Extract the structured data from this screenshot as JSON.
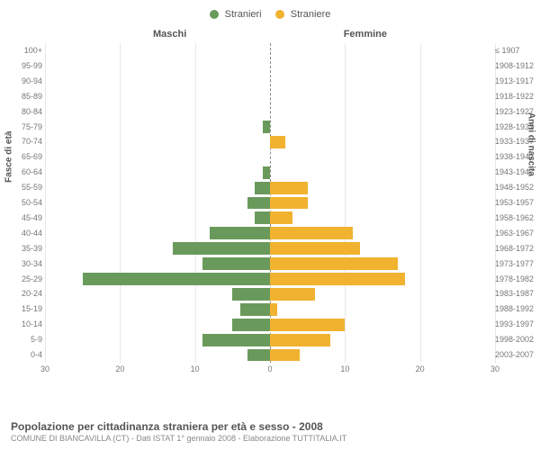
{
  "legend": {
    "male": {
      "label": "Stranieri",
      "color": "#6a9a5b"
    },
    "female": {
      "label": "Straniere",
      "color": "#f0b22f"
    }
  },
  "columns": {
    "left": "Maschi",
    "right": "Femmine"
  },
  "axes": {
    "left_title": "Fasce di età",
    "right_title": "Anni di nascita",
    "x_max": 30,
    "x_ticks_left": [
      30,
      20,
      10,
      0
    ],
    "x_ticks_right": [
      0,
      10,
      20,
      30
    ],
    "grid_positions": [
      -30,
      -20,
      -10,
      10,
      20,
      30
    ],
    "grid_color": "#e8e8e8",
    "center_color": "#888"
  },
  "colors": {
    "male_bar": "#6a9a5b",
    "female_bar": "#f0b22f",
    "background": "#ffffff",
    "text": "#555555",
    "muted_text": "#888888"
  },
  "rows": [
    {
      "age": "100+",
      "birth": "≤ 1907",
      "m": 0,
      "f": 0
    },
    {
      "age": "95-99",
      "birth": "1908-1912",
      "m": 0,
      "f": 0
    },
    {
      "age": "90-94",
      "birth": "1913-1917",
      "m": 0,
      "f": 0
    },
    {
      "age": "85-89",
      "birth": "1918-1922",
      "m": 0,
      "f": 0
    },
    {
      "age": "80-84",
      "birth": "1923-1927",
      "m": 0,
      "f": 0
    },
    {
      "age": "75-79",
      "birth": "1928-1932",
      "m": 1,
      "f": 0
    },
    {
      "age": "70-74",
      "birth": "1933-1937",
      "m": 0,
      "f": 2
    },
    {
      "age": "65-69",
      "birth": "1938-1942",
      "m": 0,
      "f": 0
    },
    {
      "age": "60-64",
      "birth": "1943-1947",
      "m": 1,
      "f": 0
    },
    {
      "age": "55-59",
      "birth": "1948-1952",
      "m": 2,
      "f": 5
    },
    {
      "age": "50-54",
      "birth": "1953-1957",
      "m": 3,
      "f": 5
    },
    {
      "age": "45-49",
      "birth": "1958-1962",
      "m": 2,
      "f": 3
    },
    {
      "age": "40-44",
      "birth": "1963-1967",
      "m": 8,
      "f": 11
    },
    {
      "age": "35-39",
      "birth": "1968-1972",
      "m": 13,
      "f": 12
    },
    {
      "age": "30-34",
      "birth": "1973-1977",
      "m": 9,
      "f": 17
    },
    {
      "age": "25-29",
      "birth": "1978-1982",
      "m": 25,
      "f": 18
    },
    {
      "age": "20-24",
      "birth": "1983-1987",
      "m": 5,
      "f": 6
    },
    {
      "age": "15-19",
      "birth": "1988-1992",
      "m": 4,
      "f": 1
    },
    {
      "age": "10-14",
      "birth": "1993-1997",
      "m": 5,
      "f": 10
    },
    {
      "age": "5-9",
      "birth": "1998-2002",
      "m": 9,
      "f": 8
    },
    {
      "age": "0-4",
      "birth": "2003-2007",
      "m": 3,
      "f": 4
    }
  ],
  "title": "Popolazione per cittadinanza straniera per età e sesso - 2008",
  "subtitle": "COMUNE DI BIANCAVILLA (CT) - Dati ISTAT 1° gennaio 2008 - Elaborazione TUTTITALIA.IT"
}
